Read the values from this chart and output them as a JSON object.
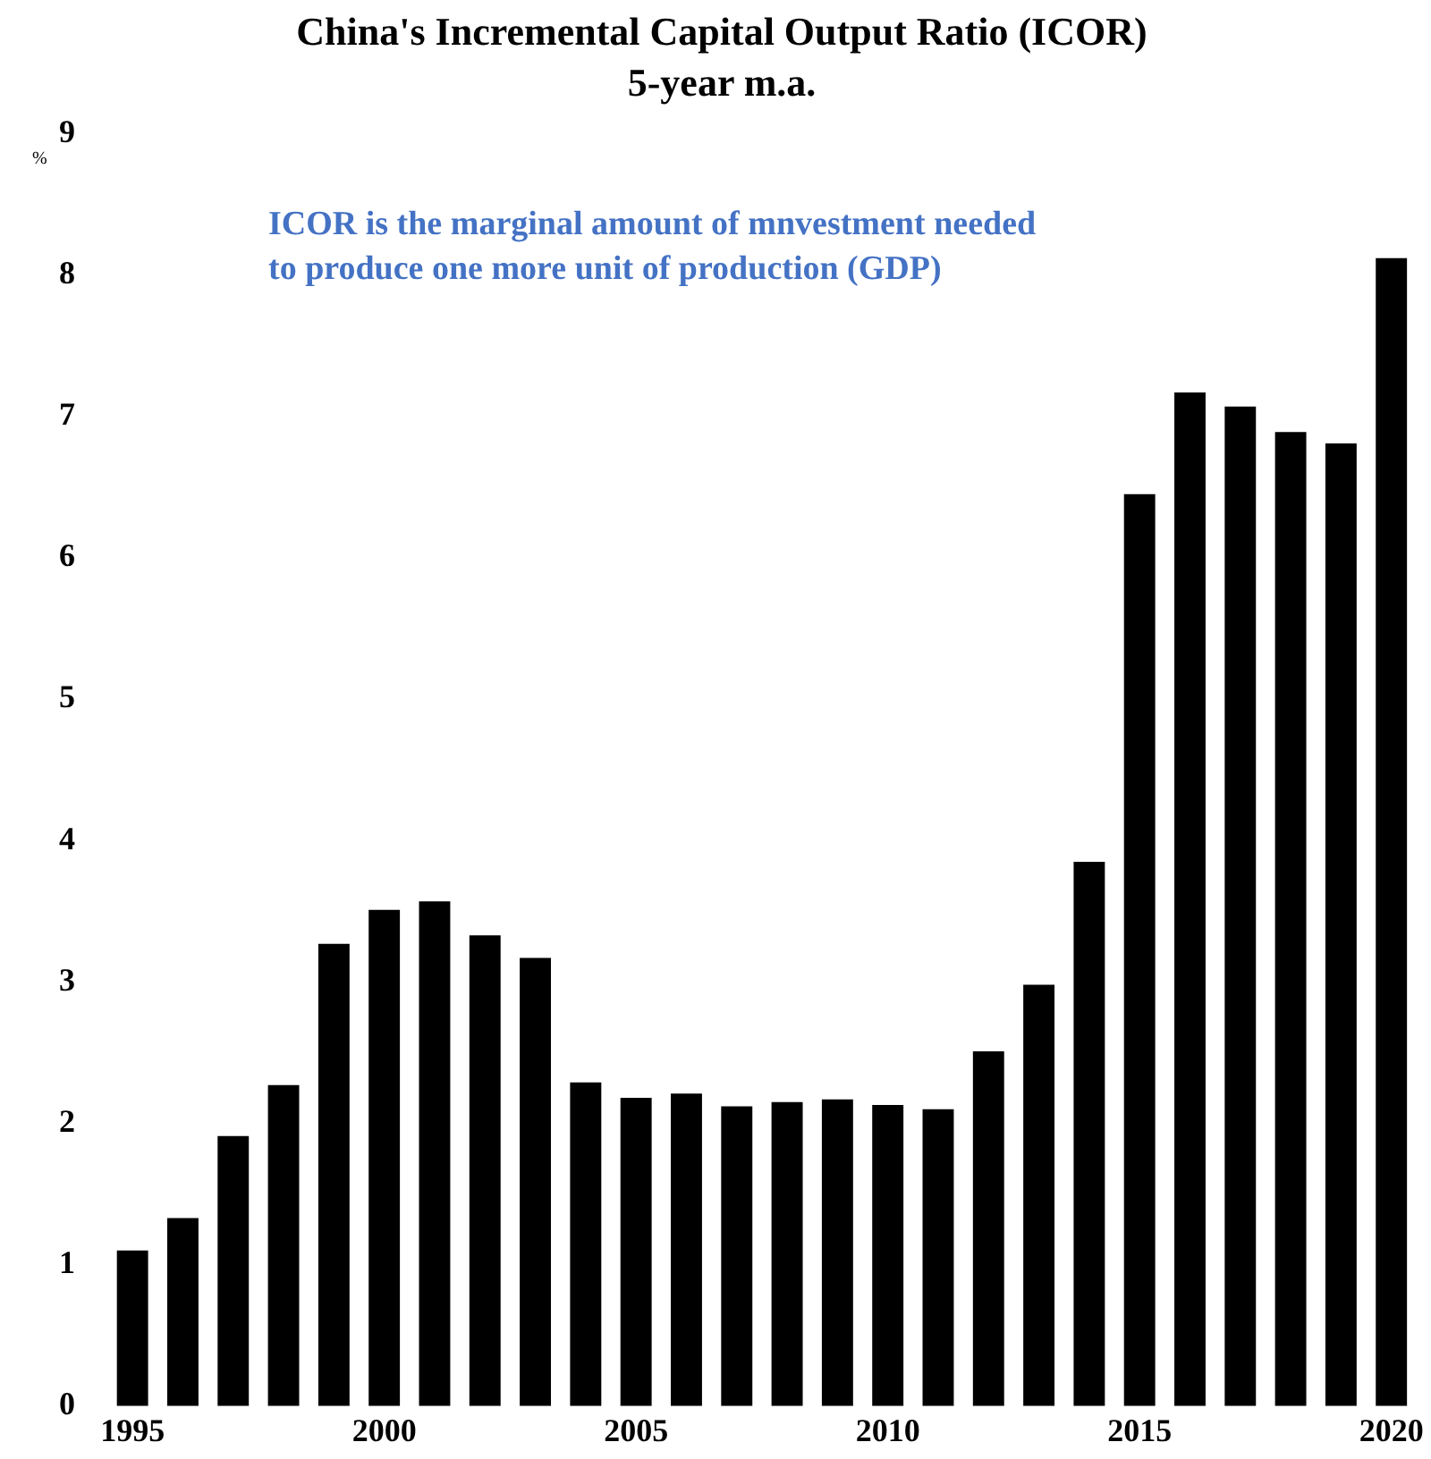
{
  "chart_data": {
    "type": "bar",
    "title": "China's Incremental Capital Output Ratio (ICOR)",
    "subtitle": "5-year m.a.",
    "ylabel": "%",
    "annotations": [
      "ICOR is the marginal amount of mnvestment needed to produce one more unit of production (GDP)"
    ],
    "categories": [
      "1995",
      null,
      null,
      null,
      null,
      "2000",
      null,
      null,
      null,
      null,
      "2005",
      null,
      null,
      null,
      null,
      "2010",
      null,
      null,
      null,
      null,
      "2015",
      null,
      null,
      null,
      null,
      "2020"
    ],
    "series": [
      {
        "color": "#000000",
        "values": [
          1.1,
          1.33,
          1.91,
          2.27,
          3.27,
          3.51,
          3.57,
          3.33,
          3.17,
          2.29,
          2.18,
          2.21,
          2.12,
          2.15,
          2.17,
          2.13,
          2.1,
          2.51,
          2.98,
          3.85,
          6.45,
          7.17,
          7.07,
          6.89,
          6.81,
          8.12
        ]
      }
    ],
    "ylim": [
      0,
      9
    ],
    "yticks": [
      0,
      1,
      2,
      3,
      4,
      5,
      6,
      7,
      8,
      9
    ],
    "grid": false,
    "legend": false
  }
}
